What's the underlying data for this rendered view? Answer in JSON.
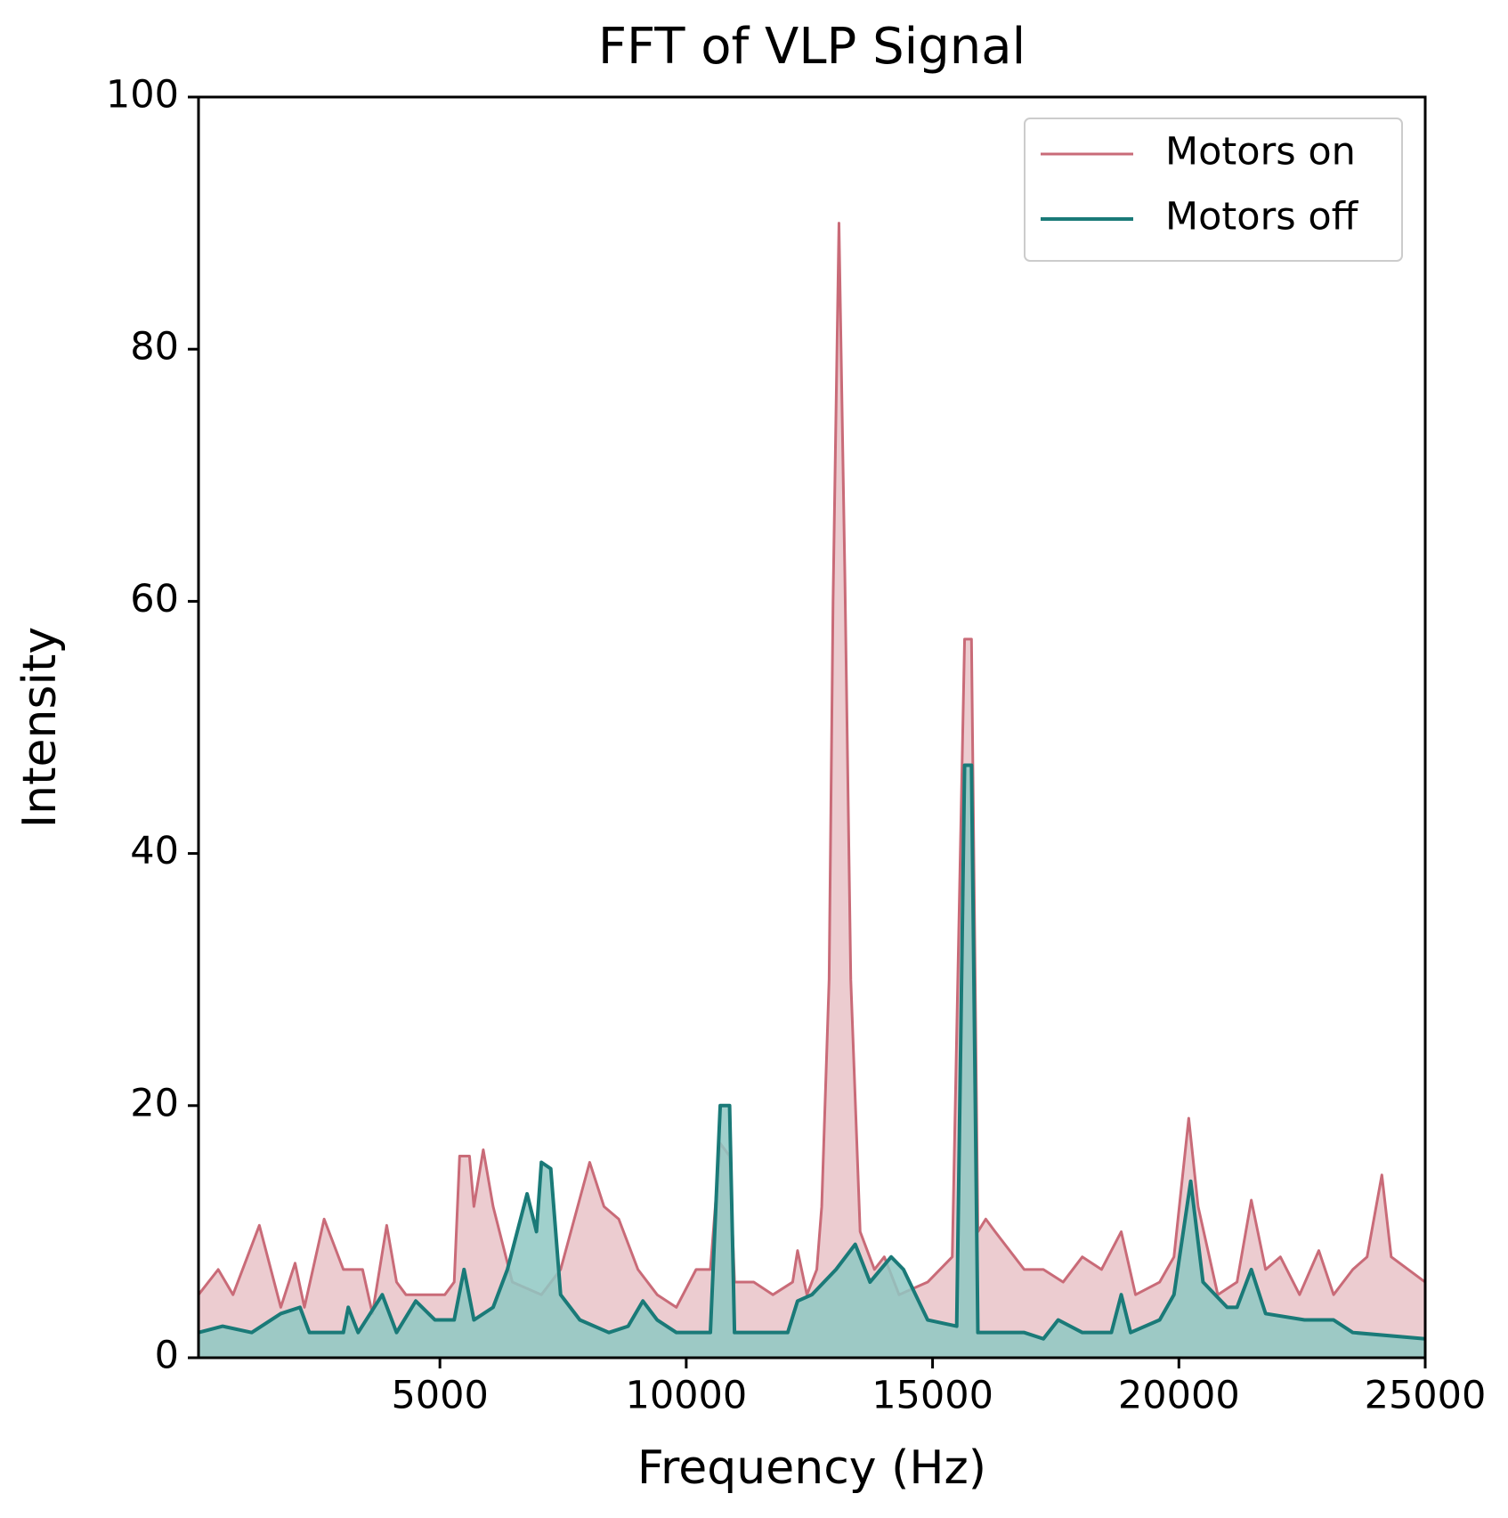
{
  "chart_data": {
    "type": "line",
    "title": "FFT of VLP Signal",
    "xlabel": "Frequency (Hz)",
    "ylabel": "Intensity",
    "xlim": [
      100,
      25000
    ],
    "ylim": [
      0,
      100
    ],
    "xticks": [
      5000,
      10000,
      15000,
      20000,
      25000
    ],
    "yticks": [
      0,
      20,
      40,
      60,
      80,
      100
    ],
    "grid": false,
    "legend": "upper right",
    "fill": true,
    "series": [
      {
        "name": "Motors on",
        "color": "#c96b78",
        "fill_color": "#e9c3c8",
        "x": [
          100,
          500,
          800,
          1335,
          1770,
          2060,
          2250,
          2650,
          3040,
          3430,
          3630,
          3920,
          4120,
          4310,
          5100,
          5290,
          5400,
          5600,
          5690,
          5880,
          6080,
          6470,
          7060,
          7450,
          8040,
          8330,
          8630,
          9020,
          9410,
          9800,
          10200,
          10490,
          10690,
          10880,
          10980,
          11370,
          11760,
          12160,
          12260,
          12450,
          12650,
          12750,
          12900,
          12980,
          13100,
          13220,
          13340,
          13530,
          13820,
          14020,
          14320,
          14900,
          15400,
          15650,
          15790,
          15920,
          16080,
          16270,
          16860,
          17250,
          17650,
          18040,
          18430,
          18830,
          19120,
          19610,
          19900,
          20200,
          20390,
          20790,
          21180,
          21470,
          21760,
          22060,
          22450,
          22840,
          23140,
          23530,
          23820,
          24120,
          24310,
          25000
        ],
        "values": [
          5,
          7,
          5,
          10.5,
          4,
          7.5,
          4,
          11,
          7,
          7,
          3.5,
          10.5,
          6,
          5,
          5,
          6,
          16,
          16,
          12,
          16.5,
          12,
          6,
          5,
          7,
          15.5,
          12,
          11,
          7,
          5,
          4,
          7,
          7,
          17,
          16,
          6,
          6,
          5,
          6,
          8.5,
          5,
          7,
          12,
          30,
          60,
          90,
          62,
          30,
          10,
          7,
          8,
          5,
          6,
          8,
          57,
          57,
          10,
          11,
          10,
          7,
          7,
          6,
          8,
          7,
          10,
          5,
          6,
          8,
          19,
          12,
          5,
          6,
          12.5,
          7,
          8,
          5,
          8.5,
          5,
          7,
          8,
          14.5,
          8,
          6
        ]
      },
      {
        "name": "Motors off",
        "color": "#1a7a78",
        "fill_color": "#8fc8c3",
        "x": [
          100,
          590,
          1180,
          1770,
          2160,
          2350,
          3040,
          3140,
          3340,
          3830,
          4120,
          4510,
          4900,
          5290,
          5490,
          5690,
          6080,
          6370,
          6770,
          6960,
          7060,
          7250,
          7450,
          7840,
          8430,
          8820,
          9120,
          9410,
          9800,
          10490,
          10690,
          10880,
          10980,
          11760,
          12060,
          12260,
          12550,
          13040,
          13430,
          13730,
          14160,
          14410,
          14900,
          15490,
          15650,
          15790,
          15920,
          16080,
          16860,
          17250,
          17550,
          18040,
          18630,
          18830,
          19020,
          19610,
          19900,
          20240,
          20490,
          20980,
          21180,
          21470,
          21760,
          22550,
          23140,
          23530,
          25000
        ],
        "values": [
          2,
          2.5,
          2,
          3.5,
          4,
          2,
          2,
          4,
          2,
          5,
          2,
          4.5,
          3,
          3,
          7,
          3,
          4,
          7,
          13,
          10,
          15.5,
          15,
          5,
          3,
          2,
          2.5,
          4.5,
          3,
          2,
          2,
          20,
          20,
          2,
          2,
          2,
          4.5,
          5,
          7,
          9,
          6,
          8,
          7,
          3,
          2.5,
          47,
          47,
          2,
          2,
          2,
          1.5,
          3,
          2,
          2,
          5,
          2,
          3,
          5,
          14,
          6,
          4,
          4,
          7,
          3.5,
          3,
          3,
          2,
          1.5
        ]
      }
    ]
  }
}
